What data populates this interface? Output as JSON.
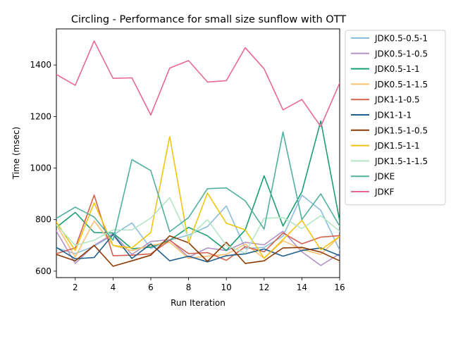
{
  "chart_data": {
    "type": "line",
    "title": "Circling - Performance for small size sunflow with OTT",
    "xlabel": "Run Iteration",
    "ylabel": "Time (msec)",
    "xlim": [
      1,
      16
    ],
    "ylim": [
      575,
      1540
    ],
    "xticks": [
      2,
      4,
      6,
      8,
      10,
      12,
      14,
      16
    ],
    "yticks": [
      600,
      800,
      1000,
      1200,
      1400
    ],
    "grid": false,
    "legend_position": "outside-upper-right",
    "x": [
      1,
      2,
      3,
      4,
      5,
      6,
      7,
      8,
      9,
      10,
      11,
      12,
      13,
      14,
      15,
      16
    ],
    "series": [
      {
        "name": "JDK0.5-0.5-1",
        "color": "#89bedc",
        "values": [
          690,
          668,
          697,
          740,
          787,
          688,
          720,
          740,
          773,
          853,
          688,
          692,
          736,
          895,
          836,
          682
        ]
      },
      {
        "name": "JDK0.5-1-0.5",
        "color": "#b294c7",
        "values": [
          755,
          630,
          700,
          745,
          665,
          715,
          722,
          654,
          690,
          680,
          712,
          702,
          755,
          675,
          622,
          668
        ]
      },
      {
        "name": "JDK0.5-1-1",
        "color": "#1a9e77",
        "values": [
          770,
          828,
          750,
          748,
          687,
          693,
          720,
          770,
          737,
          680,
          760,
          970,
          775,
          908,
          1183,
          795
        ]
      },
      {
        "name": "JDK0.5-1-1.5",
        "color": "#fdbf6f",
        "values": [
          780,
          655,
          795,
          700,
          680,
          700,
          712,
          650,
          658,
          665,
          705,
          650,
          718,
          685,
          665,
          735
        ]
      },
      {
        "name": "JDK1-1-0.5",
        "color": "#d6604d",
        "values": [
          668,
          690,
          895,
          660,
          662,
          667,
          720,
          668,
          672,
          642,
          695,
          675,
          748,
          706,
          732,
          738
        ]
      },
      {
        "name": "JDK1-1-1",
        "color": "#1f5f8b",
        "values": [
          692,
          648,
          653,
          742,
          649,
          706,
          640,
          658,
          636,
          660,
          667,
          686,
          658,
          680,
          690,
          660
        ]
      },
      {
        "name": "JDK1.5-1-0.5",
        "color": "#8c3a04",
        "values": [
          665,
          640,
          700,
          619,
          640,
          662,
          737,
          710,
          638,
          712,
          630,
          640,
          690,
          692,
          674,
          640
        ]
      },
      {
        "name": "JDK1.5-1-1",
        "color": "#f1c40f",
        "values": [
          790,
          680,
          865,
          700,
          690,
          750,
          1122,
          710,
          903,
          786,
          760,
          650,
          723,
          797,
          683,
          735
        ]
      },
      {
        "name": "JDK1.5-1-1.5",
        "color": "#b2e6c7",
        "values": [
          780,
          700,
          720,
          760,
          760,
          806,
          885,
          730,
          800,
          700,
          670,
          805,
          808,
          765,
          815,
          755
        ]
      },
      {
        "name": "JDKE",
        "color": "#52b09f",
        "values": [
          805,
          848,
          810,
          720,
          1033,
          990,
          753,
          808,
          920,
          923,
          873,
          763,
          1140,
          800,
          900,
          775
        ]
      },
      {
        "name": "JDKF",
        "color": "#e7698f",
        "values": [
          1363,
          1321,
          1493,
          1348,
          1350,
          1206,
          1388,
          1417,
          1334,
          1339,
          1467,
          1385,
          1226,
          1266,
          1161,
          1330
        ]
      }
    ]
  }
}
